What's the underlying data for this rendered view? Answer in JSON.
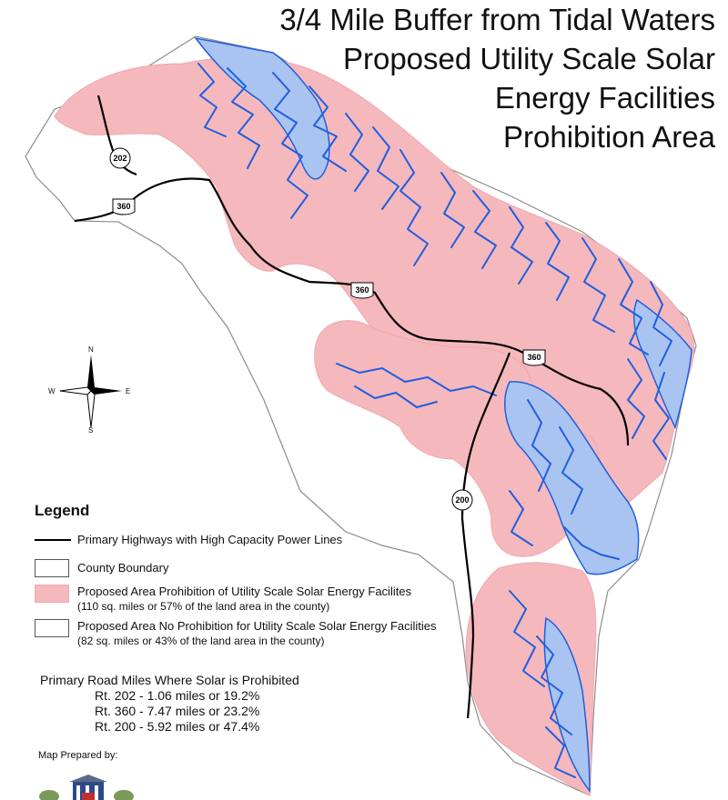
{
  "title": {
    "line1": "3/4 Mile Buffer from Tidal Waters",
    "line2": "Proposed Utility Scale Solar",
    "line3": "Energy Facilities",
    "line4": "Prohibition Area"
  },
  "colors": {
    "prohibition_area": "#f5b8bc",
    "tidal_water": "#a9c4f0",
    "water_line": "#1f5fe0",
    "county_boundary": "#8c8c8c",
    "highway": "#000000"
  },
  "highway_shields": {
    "rt202": "202",
    "rt360_west": "360",
    "rt360_center": "360",
    "rt360_east": "360",
    "rt200": "200"
  },
  "compass": {
    "n": "N",
    "s": "S",
    "e": "E",
    "w": "W"
  },
  "legend": {
    "heading": "Legend",
    "highways": "Primary Highways with High Capacity Power Lines",
    "county_boundary": "County Boundary",
    "prohibition": "Proposed Area Prohibition of Utility Scale Solar Energy Facilites",
    "prohibition_detail": "(110 sq. miles or 57% of the land area in the county)",
    "no_prohibition": "Proposed Area No Prohibition for Utility Scale Solar Energy Facilities",
    "no_prohibition_detail": "(82 sq. miles or 43% of the land area in the county)"
  },
  "road_miles": {
    "heading": "Primary Road Miles Where Solar is Prohibited",
    "rt202": "Rt. 202 - 1.06 miles or 19.2%",
    "rt360": "Rt. 360 - 7.47 miles or 23.2%",
    "rt200": "Rt. 200 - 5.92 miles or 47.4%"
  },
  "prepared_by": "Map Prepared by:"
}
